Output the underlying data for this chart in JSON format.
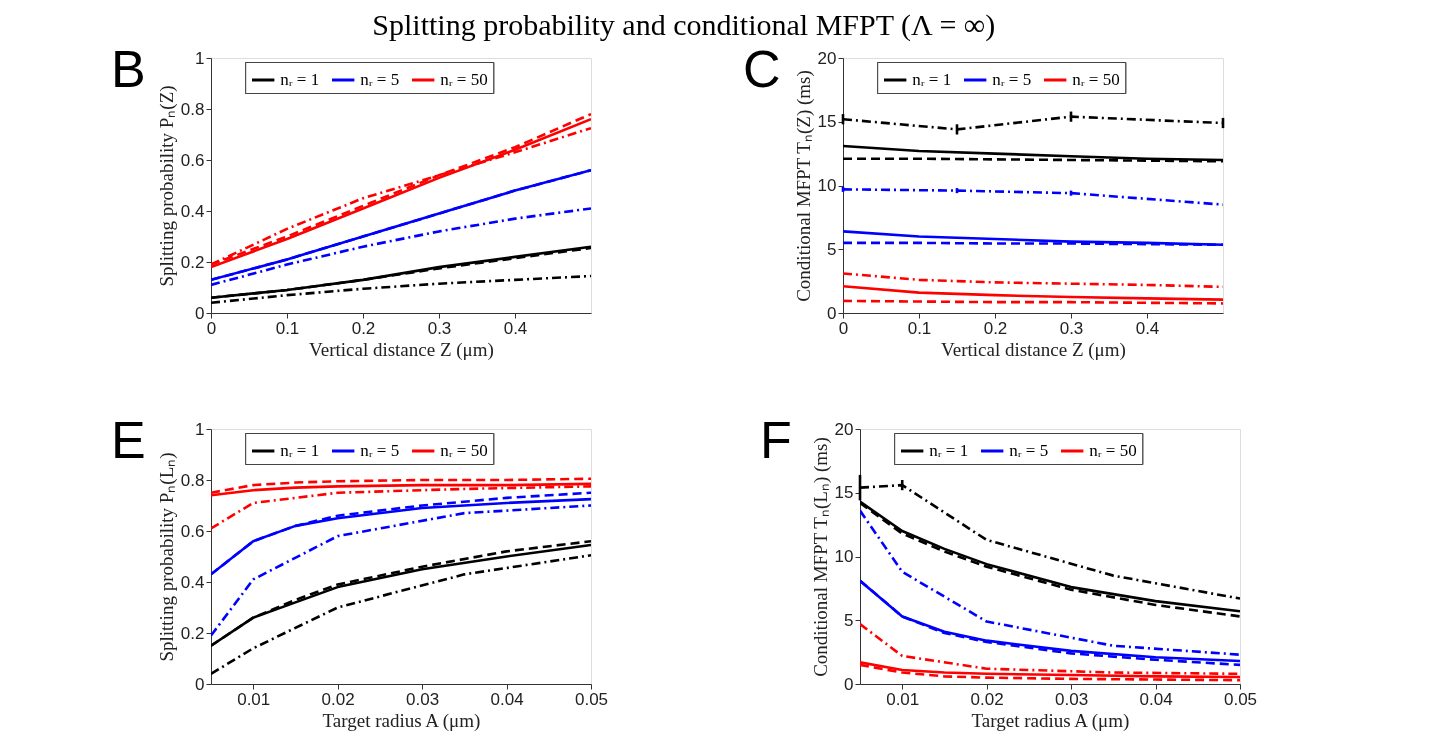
{
  "chart_data": [
    {
      "type": "line",
      "title": "Splitting probability and conditional MFPT (Λ = ∞)",
      "annotations": [
        "B"
      ],
      "xlabel": "Vertical distance Z (μm)",
      "ylabel": "Splitting probability Pₙ(Z)",
      "xlim": [
        0,
        0.5
      ],
      "xticks": [
        0,
        0.1,
        0.2,
        0.3,
        0.4
      ],
      "ylim": [
        0,
        1
      ],
      "yticks": [
        0,
        0.2,
        0.4,
        0.6,
        0.8,
        1
      ],
      "grid": false,
      "legend": "top",
      "series": [
        {
          "name": "nᵣ = 1",
          "color": "#000000",
          "line_style": "solid",
          "x": [
            0,
            0.1,
            0.2,
            0.3,
            0.4,
            0.5
          ],
          "values": [
            0.06,
            0.09,
            0.13,
            0.18,
            0.22,
            0.26
          ]
        },
        {
          "name": "nᵣ = 5",
          "color": "#0000ff",
          "line_style": "solid",
          "x": [
            0,
            0.1,
            0.2,
            0.3,
            0.4,
            0.5
          ],
          "values": [
            0.13,
            0.21,
            0.3,
            0.39,
            0.48,
            0.56
          ]
        },
        {
          "name": "nᵣ = 50",
          "color": "#ff0000",
          "line_style": "solid",
          "x": [
            0,
            0.1,
            0.2,
            0.3,
            0.4,
            0.5
          ],
          "values": [
            0.18,
            0.29,
            0.41,
            0.53,
            0.64,
            0.76
          ]
        },
        {
          "color": "#000000",
          "line_style": "dashed",
          "x": [
            0,
            0.1,
            0.2,
            0.3,
            0.4,
            0.5
          ],
          "values": [
            0.06,
            0.09,
            0.13,
            0.175,
            0.215,
            0.255
          ]
        },
        {
          "color": "#0000ff",
          "line_style": "dashed",
          "x": [
            0,
            0.1,
            0.2,
            0.3,
            0.4,
            0.5
          ],
          "values": [
            0.13,
            0.21,
            0.3,
            0.39,
            0.48,
            0.56
          ]
        },
        {
          "color": "#ff0000",
          "line_style": "dashed",
          "x": [
            0,
            0.1,
            0.2,
            0.3,
            0.4,
            0.5
          ],
          "values": [
            0.19,
            0.3,
            0.42,
            0.54,
            0.65,
            0.78
          ]
        },
        {
          "color": "#000000",
          "line_style": "dashdot",
          "x": [
            0,
            0.1,
            0.2,
            0.3,
            0.4,
            0.5
          ],
          "values": [
            0.04,
            0.07,
            0.095,
            0.115,
            0.13,
            0.145
          ]
        },
        {
          "color": "#0000ff",
          "line_style": "dashdot",
          "x": [
            0,
            0.1,
            0.2,
            0.3,
            0.4,
            0.5
          ],
          "values": [
            0.11,
            0.19,
            0.26,
            0.32,
            0.37,
            0.41
          ]
        },
        {
          "color": "#ff0000",
          "line_style": "dashdot",
          "x": [
            0,
            0.1,
            0.2,
            0.3,
            0.4,
            0.5
          ],
          "values": [
            0.19,
            0.33,
            0.45,
            0.54,
            0.63,
            0.725
          ]
        }
      ]
    },
    {
      "type": "line",
      "annotations": [
        "C"
      ],
      "xlabel": "Vertical distance Z (μm)",
      "ylabel": "Conditional MFPT Tₙ(Z) (ms)",
      "xlim": [
        0,
        0.5
      ],
      "xticks": [
        0,
        0.1,
        0.2,
        0.3,
        0.4
      ],
      "ylim": [
        0,
        20
      ],
      "yticks": [
        0,
        5,
        10,
        15,
        20
      ],
      "grid": false,
      "legend": "top",
      "series": [
        {
          "name": "nᵣ = 1",
          "color": "#000000",
          "line_style": "solid",
          "x": [
            0,
            0.1,
            0.2,
            0.3,
            0.4,
            0.5
          ],
          "values": [
            13.1,
            12.7,
            12.5,
            12.3,
            12.1,
            12.0
          ]
        },
        {
          "name": "nᵣ = 5",
          "color": "#0000ff",
          "line_style": "solid",
          "x": [
            0,
            0.1,
            0.2,
            0.3,
            0.4,
            0.5
          ],
          "values": [
            6.4,
            6.0,
            5.8,
            5.6,
            5.5,
            5.35
          ]
        },
        {
          "name": "nᵣ = 50",
          "color": "#ff0000",
          "line_style": "solid",
          "x": [
            0,
            0.1,
            0.2,
            0.3,
            0.4,
            0.5
          ],
          "values": [
            2.1,
            1.6,
            1.4,
            1.25,
            1.15,
            1.05
          ]
        },
        {
          "color": "#000000",
          "line_style": "dashed",
          "x": [
            0,
            0.1,
            0.2,
            0.3,
            0.4,
            0.5
          ],
          "values": [
            12.1,
            12.1,
            12.05,
            12.0,
            11.95,
            11.9
          ]
        },
        {
          "color": "#0000ff",
          "line_style": "dashed",
          "x": [
            0,
            0.1,
            0.2,
            0.3,
            0.4,
            0.5
          ],
          "values": [
            5.5,
            5.5,
            5.45,
            5.45,
            5.4,
            5.35
          ]
        },
        {
          "color": "#ff0000",
          "line_style": "dashed",
          "x": [
            0,
            0.1,
            0.2,
            0.3,
            0.4,
            0.5
          ],
          "values": [
            0.95,
            0.9,
            0.85,
            0.85,
            0.8,
            0.75
          ]
        },
        {
          "color": "#000000",
          "line_style": "dashdot",
          "x": [
            0,
            0.15,
            0.3,
            0.5
          ],
          "values": [
            15.2,
            14.4,
            15.4,
            14.9
          ],
          "errors": [
            0.4,
            0.4,
            0.4,
            0.4
          ]
        },
        {
          "color": "#0000ff",
          "line_style": "dashdot",
          "x": [
            0,
            0.15,
            0.3,
            0.5
          ],
          "values": [
            9.7,
            9.6,
            9.4,
            8.5
          ],
          "errors": [
            0.2,
            0.2,
            0.2,
            null
          ]
        },
        {
          "color": "#ff0000",
          "line_style": "dashdot",
          "x": [
            0,
            0.1,
            0.2,
            0.3,
            0.4,
            0.5
          ],
          "values": [
            3.1,
            2.6,
            2.4,
            2.3,
            2.2,
            2.05
          ]
        }
      ]
    },
    {
      "type": "line",
      "annotations": [
        "E"
      ],
      "xlabel": "Target radius A (μm)",
      "ylabel": "Splitting probability Pₙ(Lₙ)",
      "xlim": [
        0.005,
        0.05
      ],
      "xticks": [
        0.01,
        0.02,
        0.03,
        0.04,
        0.05
      ],
      "ylim": [
        0,
        1
      ],
      "yticks": [
        0,
        0.2,
        0.4,
        0.6,
        0.8,
        1
      ],
      "grid": false,
      "legend": "top",
      "series": [
        {
          "name": "nᵣ = 1",
          "color": "#000000",
          "line_style": "solid",
          "x": [
            0.005,
            0.01,
            0.015,
            0.02,
            0.03,
            0.04,
            0.05
          ],
          "values": [
            0.15,
            0.26,
            0.32,
            0.38,
            0.45,
            0.5,
            0.545
          ]
        },
        {
          "name": "nᵣ = 5",
          "color": "#0000ff",
          "line_style": "solid",
          "x": [
            0.005,
            0.01,
            0.015,
            0.02,
            0.03,
            0.04,
            0.05
          ],
          "values": [
            0.43,
            0.56,
            0.62,
            0.65,
            0.69,
            0.71,
            0.725
          ]
        },
        {
          "name": "nᵣ = 50",
          "color": "#ff0000",
          "line_style": "solid",
          "x": [
            0.005,
            0.01,
            0.015,
            0.02,
            0.03,
            0.04,
            0.05
          ],
          "values": [
            0.74,
            0.76,
            0.77,
            0.775,
            0.78,
            0.78,
            0.785
          ]
        },
        {
          "color": "#000000",
          "line_style": "dashed",
          "x": [
            0.005,
            0.01,
            0.015,
            0.02,
            0.03,
            0.04,
            0.05
          ],
          "values": [
            0.15,
            0.26,
            0.33,
            0.39,
            0.46,
            0.52,
            0.56
          ]
        },
        {
          "color": "#0000ff",
          "line_style": "dashed",
          "x": [
            0.005,
            0.01,
            0.015,
            0.02,
            0.03,
            0.04,
            0.05
          ],
          "values": [
            0.43,
            0.56,
            0.62,
            0.66,
            0.7,
            0.73,
            0.75
          ]
        },
        {
          "color": "#ff0000",
          "line_style": "dashed",
          "x": [
            0.005,
            0.01,
            0.015,
            0.02,
            0.03,
            0.04,
            0.05
          ],
          "values": [
            0.75,
            0.78,
            0.79,
            0.795,
            0.8,
            0.8,
            0.805
          ]
        },
        {
          "color": "#000000",
          "line_style": "dashdot",
          "x": [
            0.005,
            0.01,
            0.02,
            0.035,
            0.05
          ],
          "values": [
            0.04,
            0.14,
            0.3,
            0.43,
            0.505
          ]
        },
        {
          "color": "#0000ff",
          "line_style": "dashdot",
          "x": [
            0.005,
            0.01,
            0.02,
            0.035,
            0.05
          ],
          "values": [
            0.19,
            0.41,
            0.58,
            0.67,
            0.7
          ]
        },
        {
          "color": "#ff0000",
          "line_style": "dashdot",
          "x": [
            0.005,
            0.01,
            0.02,
            0.035,
            0.05
          ],
          "values": [
            0.61,
            0.71,
            0.75,
            0.765,
            0.775
          ]
        }
      ]
    },
    {
      "type": "line",
      "annotations": [
        "F"
      ],
      "xlabel": "Target radius A (μm)",
      "ylabel": "Conditional MFPT Tₙ(Lₙ) (ms)",
      "xlim": [
        0.005,
        0.05
      ],
      "xticks": [
        0.01,
        0.02,
        0.03,
        0.04,
        0.05
      ],
      "ylim": [
        0,
        20
      ],
      "yticks": [
        0,
        5,
        10,
        15,
        20
      ],
      "grid": false,
      "legend": "top",
      "series": [
        {
          "name": "nᵣ = 1",
          "color": "#000000",
          "line_style": "solid",
          "x": [
            0.005,
            0.01,
            0.015,
            0.02,
            0.03,
            0.04,
            0.05
          ],
          "values": [
            14.3,
            12.0,
            10.6,
            9.4,
            7.6,
            6.5,
            5.7
          ]
        },
        {
          "name": "nᵣ = 5",
          "color": "#0000ff",
          "line_style": "solid",
          "x": [
            0.005,
            0.01,
            0.015,
            0.02,
            0.03,
            0.04,
            0.05
          ],
          "values": [
            8.1,
            5.3,
            4.1,
            3.4,
            2.6,
            2.1,
            1.8
          ]
        },
        {
          "name": "nᵣ = 50",
          "color": "#ff0000",
          "line_style": "solid",
          "x": [
            0.005,
            0.01,
            0.015,
            0.02,
            0.03,
            0.04,
            0.05
          ],
          "values": [
            1.7,
            1.1,
            0.9,
            0.8,
            0.7,
            0.6,
            0.55
          ]
        },
        {
          "color": "#000000",
          "line_style": "dashed",
          "x": [
            0.005,
            0.01,
            0.015,
            0.02,
            0.03,
            0.04,
            0.05
          ],
          "values": [
            14.2,
            11.8,
            10.4,
            9.2,
            7.4,
            6.2,
            5.3
          ]
        },
        {
          "color": "#0000ff",
          "line_style": "dashed",
          "x": [
            0.005,
            0.01,
            0.015,
            0.02,
            0.03,
            0.04,
            0.05
          ],
          "values": [
            8.1,
            5.3,
            4.0,
            3.3,
            2.4,
            1.9,
            1.5
          ]
        },
        {
          "color": "#ff0000",
          "line_style": "dashed",
          "x": [
            0.005,
            0.01,
            0.015,
            0.02,
            0.03,
            0.04,
            0.05
          ],
          "values": [
            1.5,
            0.9,
            0.6,
            0.5,
            0.4,
            0.35,
            0.3
          ]
        },
        {
          "color": "#000000",
          "line_style": "dashdot",
          "x": [
            0.005,
            0.01,
            0.02,
            0.035,
            0.05
          ],
          "values": [
            15.4,
            15.6,
            11.3,
            8.5,
            6.7
          ],
          "errors": [
            [
              14.4,
              16.4
            ],
            0.4,
            null,
            null,
            null
          ]
        },
        {
          "color": "#0000ff",
          "line_style": "dashdot",
          "x": [
            0.005,
            0.01,
            0.02,
            0.035,
            0.05
          ],
          "values": [
            13.6,
            8.8,
            4.9,
            3.0,
            2.3
          ]
        },
        {
          "color": "#ff0000",
          "line_style": "dashdot",
          "x": [
            0.005,
            0.01,
            0.02,
            0.035,
            0.05
          ],
          "values": [
            4.7,
            2.2,
            1.2,
            0.9,
            0.8
          ]
        }
      ]
    }
  ]
}
